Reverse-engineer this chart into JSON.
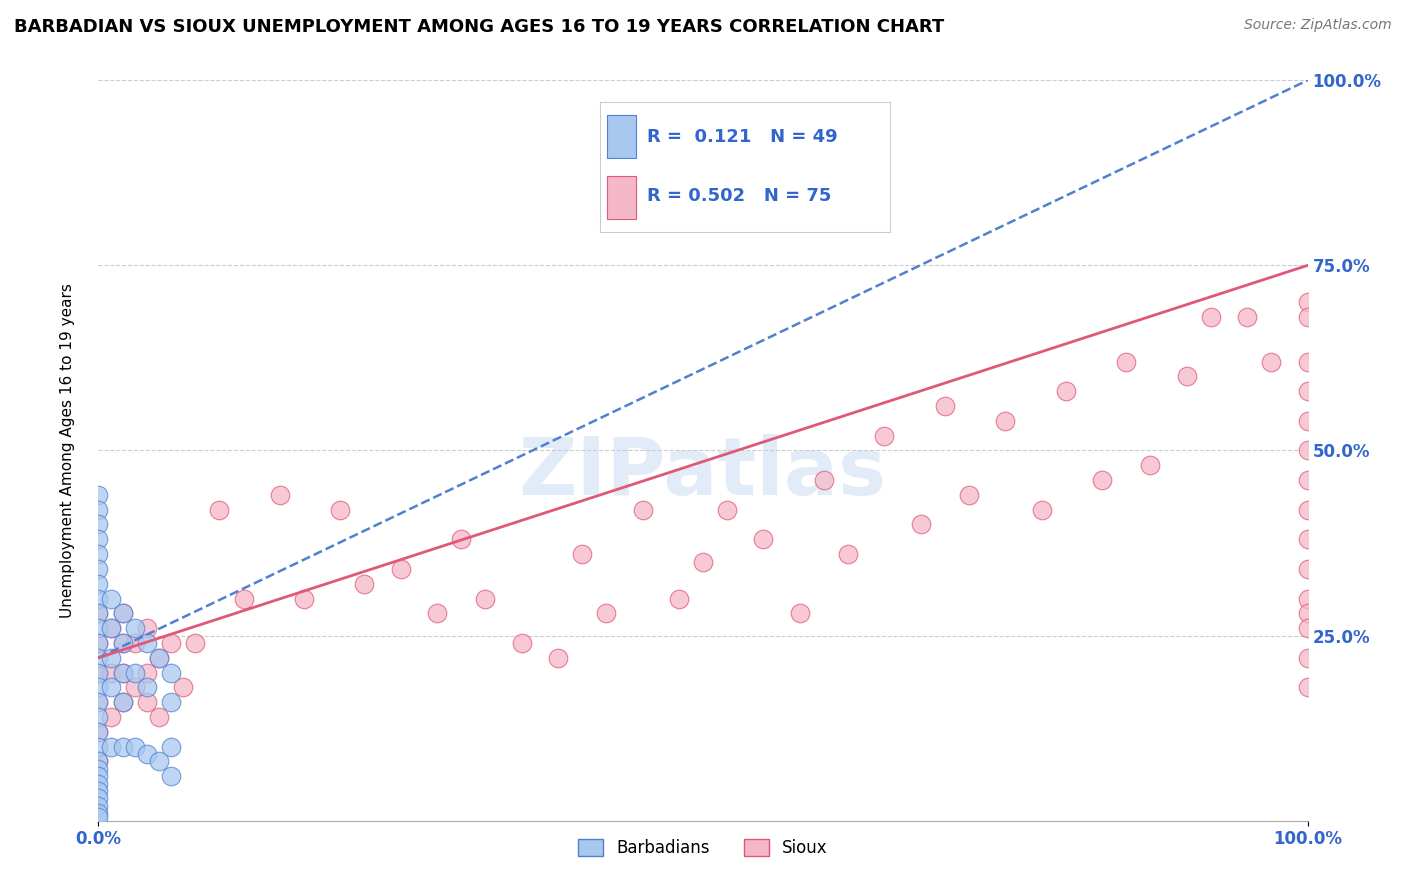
{
  "title": "BARBADIAN VS SIOUX UNEMPLOYMENT AMONG AGES 16 TO 19 YEARS CORRELATION CHART",
  "source": "Source: ZipAtlas.com",
  "ylabel": "Unemployment Among Ages 16 to 19 years",
  "legend_label1": "Barbadians",
  "legend_label2": "Sioux",
  "R1": 0.121,
  "N1": 49,
  "R2": 0.502,
  "N2": 75,
  "color_blue": "#A8C8F0",
  "color_pink": "#F5B8C8",
  "color_blue_line": "#5080D0",
  "color_pink_line": "#E05878",
  "watermark": "ZIPatlas",
  "barbadian_x": [
    0.0,
    0.0,
    0.0,
    0.0,
    0.0,
    0.0,
    0.0,
    0.0,
    0.0,
    0.0,
    0.0,
    0.0,
    0.0,
    0.0,
    0.0,
    0.0,
    0.0,
    0.0,
    0.0,
    0.0,
    0.0,
    0.0,
    0.0,
    0.0,
    0.0,
    0.0,
    0.0,
    0.01,
    0.01,
    0.01,
    0.01,
    0.01,
    0.02,
    0.02,
    0.02,
    0.02,
    0.02,
    0.03,
    0.03,
    0.03,
    0.04,
    0.04,
    0.04,
    0.05,
    0.05,
    0.06,
    0.06,
    0.06,
    0.06
  ],
  "barbadian_y": [
    0.44,
    0.42,
    0.4,
    0.38,
    0.36,
    0.34,
    0.32,
    0.3,
    0.28,
    0.26,
    0.24,
    0.22,
    0.2,
    0.18,
    0.16,
    0.14,
    0.12,
    0.1,
    0.08,
    0.07,
    0.06,
    0.05,
    0.04,
    0.03,
    0.02,
    0.01,
    0.005,
    0.3,
    0.26,
    0.22,
    0.18,
    0.1,
    0.28,
    0.24,
    0.2,
    0.16,
    0.1,
    0.26,
    0.2,
    0.1,
    0.24,
    0.18,
    0.09,
    0.22,
    0.08,
    0.2,
    0.16,
    0.1,
    0.06
  ],
  "sioux_x": [
    0.0,
    0.0,
    0.0,
    0.0,
    0.0,
    0.0,
    0.01,
    0.01,
    0.01,
    0.02,
    0.02,
    0.02,
    0.02,
    0.03,
    0.03,
    0.04,
    0.04,
    0.04,
    0.05,
    0.05,
    0.06,
    0.07,
    0.08,
    0.1,
    0.12,
    0.15,
    0.17,
    0.2,
    0.22,
    0.25,
    0.28,
    0.3,
    0.32,
    0.35,
    0.38,
    0.4,
    0.42,
    0.45,
    0.48,
    0.5,
    0.52,
    0.55,
    0.58,
    0.6,
    0.62,
    0.65,
    0.68,
    0.7,
    0.72,
    0.75,
    0.78,
    0.8,
    0.83,
    0.85,
    0.87,
    0.9,
    0.92,
    0.95,
    0.97,
    1.0,
    1.0,
    1.0,
    1.0,
    1.0,
    1.0,
    1.0,
    1.0,
    1.0,
    1.0,
    1.0,
    1.0,
    1.0,
    1.0,
    1.0
  ],
  "sioux_y": [
    0.28,
    0.24,
    0.2,
    0.16,
    0.12,
    0.08,
    0.26,
    0.2,
    0.14,
    0.28,
    0.24,
    0.2,
    0.16,
    0.24,
    0.18,
    0.26,
    0.2,
    0.16,
    0.22,
    0.14,
    0.24,
    0.18,
    0.24,
    0.42,
    0.3,
    0.44,
    0.3,
    0.42,
    0.32,
    0.34,
    0.28,
    0.38,
    0.3,
    0.24,
    0.22,
    0.36,
    0.28,
    0.42,
    0.3,
    0.35,
    0.42,
    0.38,
    0.28,
    0.46,
    0.36,
    0.52,
    0.4,
    0.56,
    0.44,
    0.54,
    0.42,
    0.58,
    0.46,
    0.62,
    0.48,
    0.6,
    0.68,
    0.68,
    0.62,
    0.7,
    0.68,
    0.62,
    0.58,
    0.54,
    0.5,
    0.46,
    0.42,
    0.38,
    0.34,
    0.3,
    0.28,
    0.26,
    0.22,
    0.18
  ],
  "blue_line_x0": 0.0,
  "blue_line_y0": 0.22,
  "blue_line_x1": 1.0,
  "blue_line_y1": 1.0,
  "pink_line_x0": 0.0,
  "pink_line_y0": 0.22,
  "pink_line_x1": 1.0,
  "pink_line_y1": 0.75,
  "xlim": [
    0.0,
    1.0
  ],
  "ylim": [
    0.0,
    1.0
  ],
  "yticks": [
    0.25,
    0.5,
    0.75,
    1.0
  ],
  "ytick_labels": [
    "25.0%",
    "50.0%",
    "75.0%",
    "100.0%"
  ],
  "xtick_left": "0.0%",
  "xtick_right": "100.0%",
  "tick_color": "#3366CC",
  "grid_color": "#CCCCCC",
  "title_fontsize": 13,
  "source_fontsize": 10,
  "legend_fontsize": 13
}
